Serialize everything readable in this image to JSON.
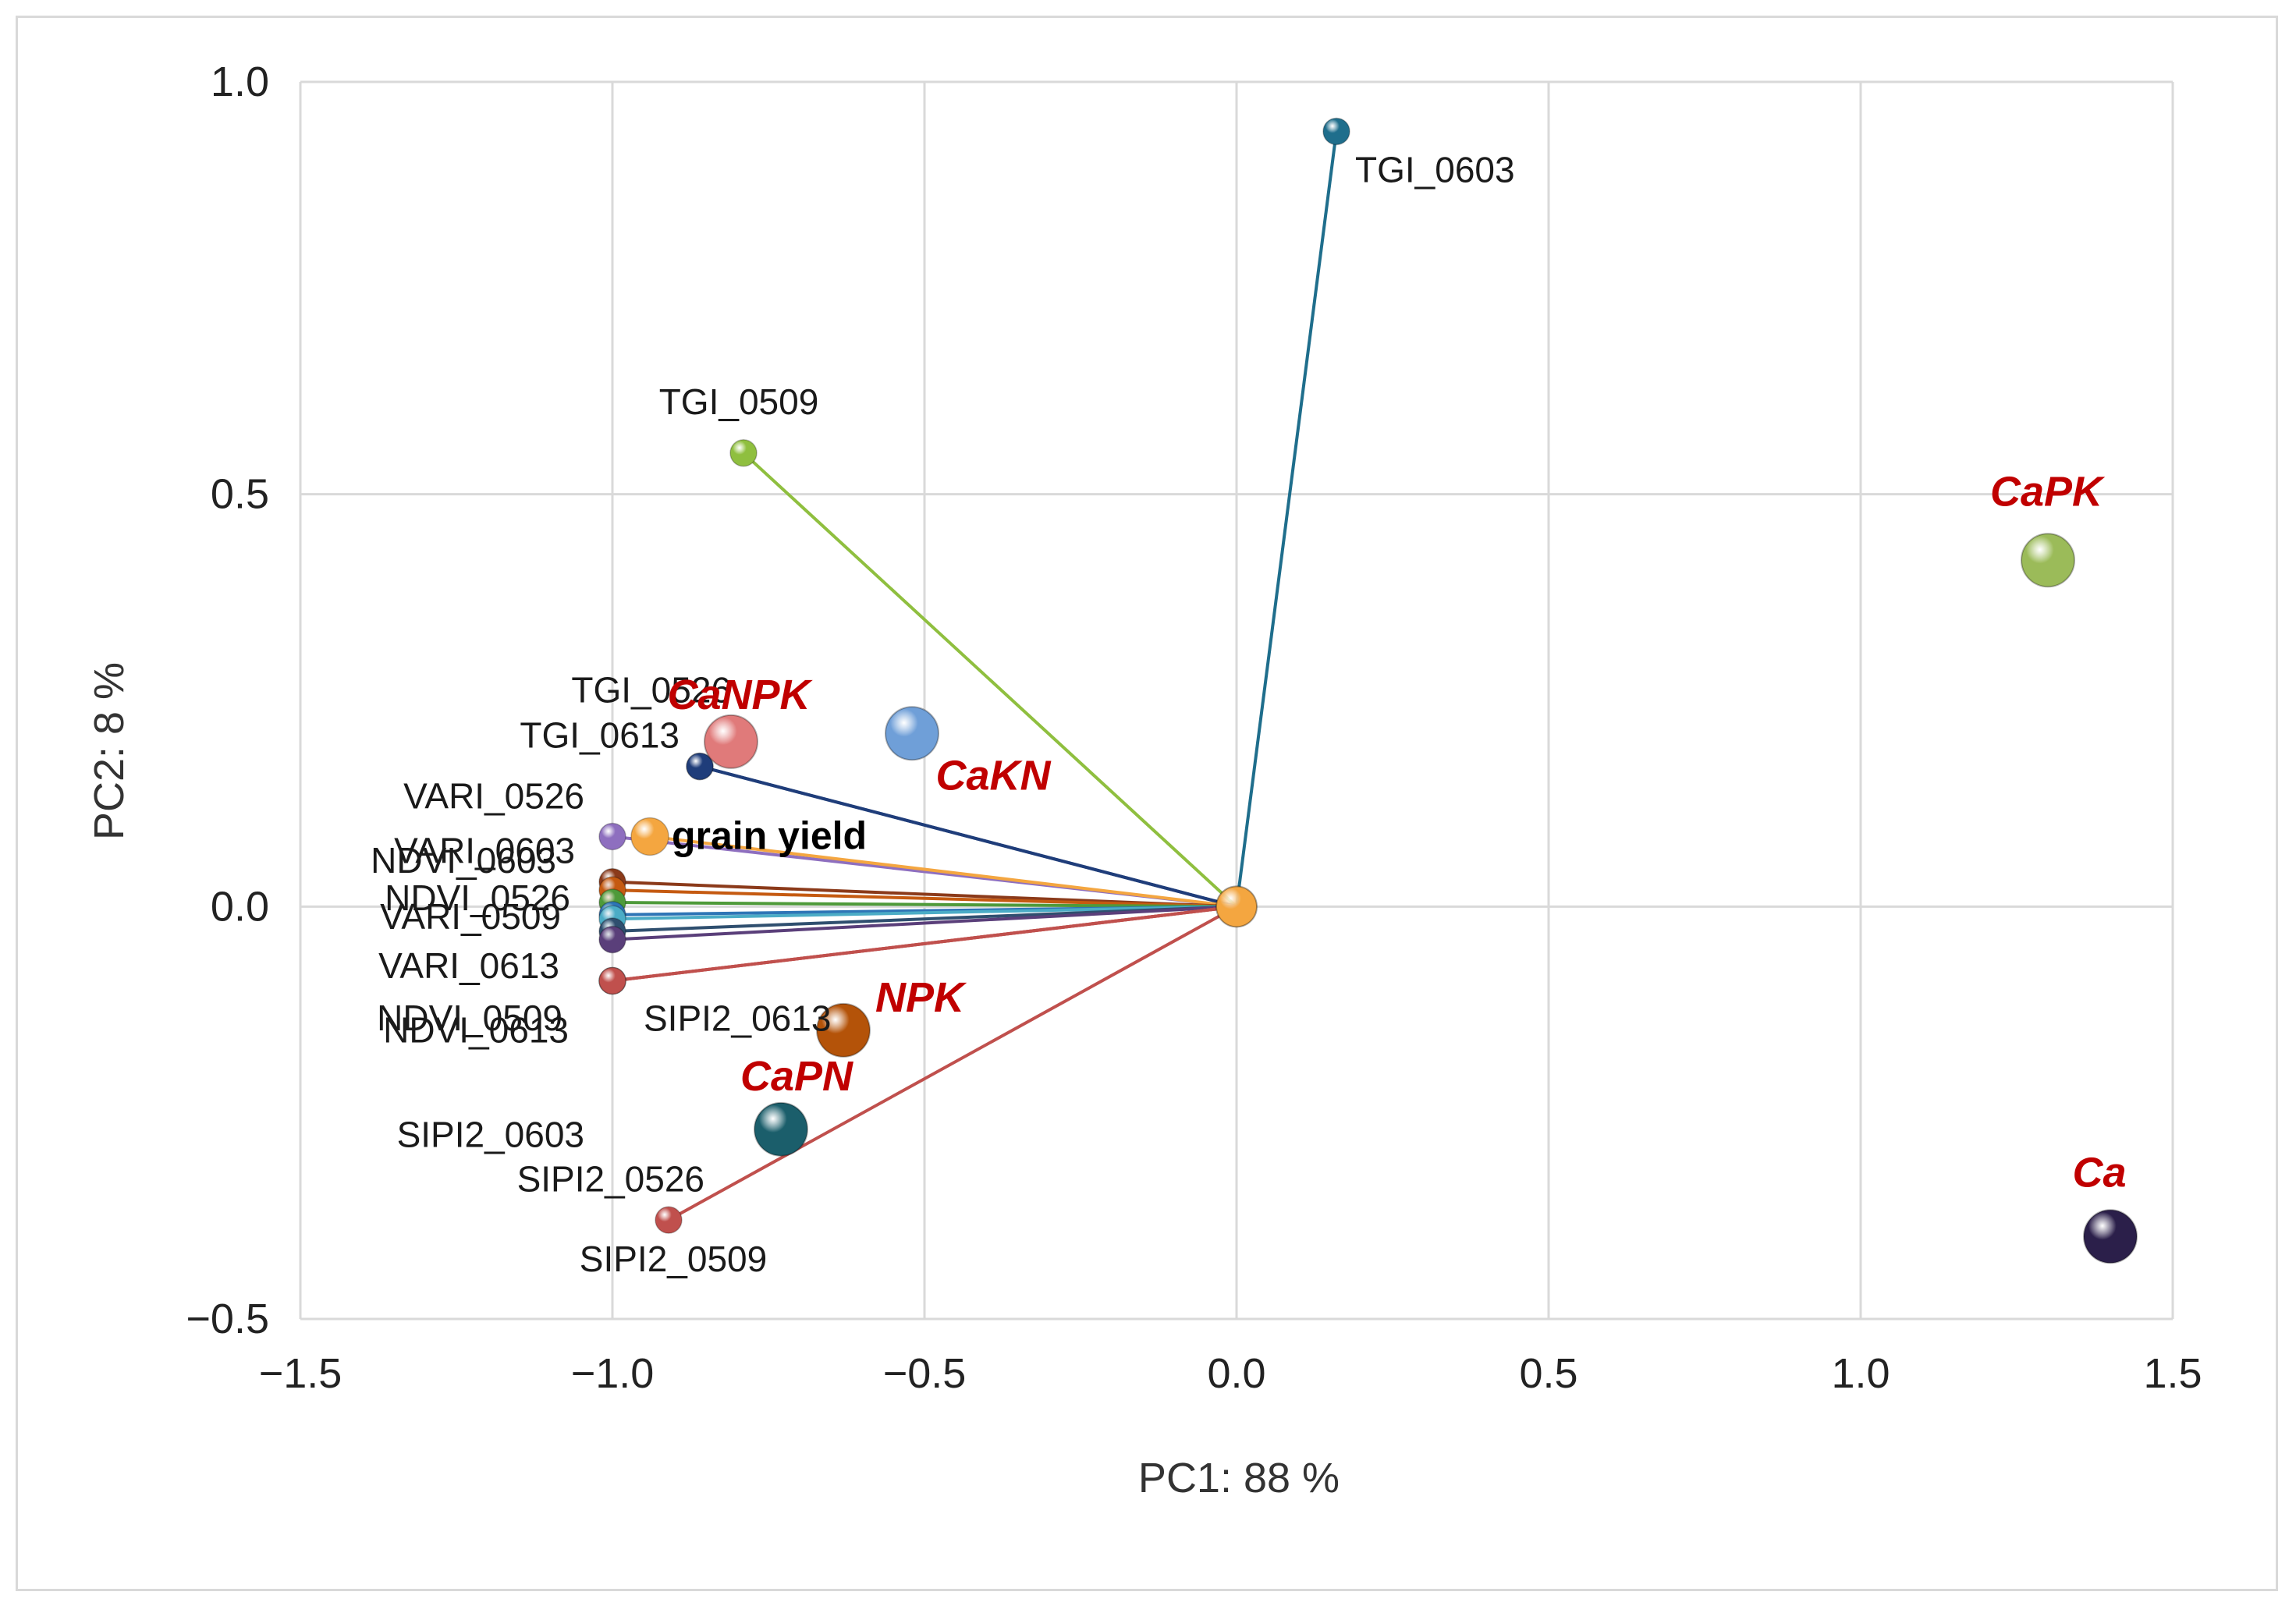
{
  "chart_data": {
    "type": "scatter",
    "subtype": "pca-biplot",
    "xlabel": "PC1: 88 %",
    "ylabel": "PC2: 8 %",
    "xlim": [
      -1.5,
      1.5
    ],
    "ylim": [
      -0.5,
      1.0
    ],
    "xticks": [
      -1.5,
      -1.0,
      -0.5,
      0.0,
      0.5,
      1.0,
      1.5
    ],
    "yticks": [
      -0.5,
      0.0,
      0.5,
      1.0
    ],
    "xtick_labels": [
      "−1.5",
      "−1.0",
      "−0.5",
      "0.0",
      "0.5",
      "1.0",
      "1.5"
    ],
    "ytick_labels": [
      "−0.5",
      "0.0",
      "0.5",
      "1.0"
    ],
    "grid": true,
    "origin": [
      0.0,
      0.0
    ],
    "origin_color": "#f4a640",
    "variables": [
      {
        "name": "TGI_0603",
        "x": 0.16,
        "y": 0.94,
        "color": "#1f6e8c",
        "label": "TGI_0603"
      },
      {
        "name": "TGI_0509",
        "x": -0.79,
        "y": 0.55,
        "color": "#8fbf3f",
        "label": "TGI_0509"
      },
      {
        "name": "TGI_0526",
        "x": -0.86,
        "y": 0.17,
        "color": "#1f3d7a",
        "label": "TGI_0526"
      },
      {
        "name": "TGI_0613",
        "x": -0.86,
        "y": 0.17,
        "color": "#1f3d7a",
        "label": "TGI_0613"
      },
      {
        "name": "VARI_0526",
        "x": -1.0,
        "y": 0.085,
        "color": "#8e6fbf",
        "label": "VARI_0526"
      },
      {
        "name": "grain yield",
        "x": -0.94,
        "y": 0.085,
        "color": "#f4a640",
        "label": "grain yield"
      },
      {
        "name": "VARI_0603",
        "x": -1.0,
        "y": 0.03,
        "color": "#8b3a1a",
        "label": "VARI_0603"
      },
      {
        "name": "NDVI_0526",
        "x": -1.0,
        "y": 0.02,
        "color": "#c55a11",
        "label": "NDVI_0526"
      },
      {
        "name": "NDVI_0603",
        "x": -1.0,
        "y": 0.005,
        "color": "#4e9a3a",
        "label": "NDVI_0603"
      },
      {
        "name": "VARI_0509",
        "x": -1.0,
        "y": -0.01,
        "color": "#2e75b6",
        "label": "VARI_0509"
      },
      {
        "name": "VARI_0613",
        "x": -1.0,
        "y": -0.015,
        "color": "#4bacc6",
        "label": "VARI_0613"
      },
      {
        "name": "NDVI_0509",
        "x": -1.0,
        "y": -0.03,
        "color": "#2f4f6f",
        "label": "NDVI_0509"
      },
      {
        "name": "NDVI_0613",
        "x": -1.0,
        "y": -0.04,
        "color": "#5a3f7a",
        "label": "NDVI_0613"
      },
      {
        "name": "SIPI2_0613",
        "x": -1.0,
        "y": -0.09,
        "color": "#d0706a",
        "label": "SIPI2_0613"
      },
      {
        "name": "SIPI2_0603",
        "x": -1.0,
        "y": -0.09,
        "color": "#c0504d",
        "label": "SIPI2_0603"
      },
      {
        "name": "SIPI2_0526",
        "x": -1.0,
        "y": -0.09,
        "color": "#c0504d",
        "label": "SIPI2_0526"
      },
      {
        "name": "SIPI2_0509",
        "x": -0.91,
        "y": -0.38,
        "color": "#c0504d",
        "label": "SIPI2_0509"
      }
    ],
    "treatments": [
      {
        "name": "CaPK",
        "x": 1.3,
        "y": 0.42,
        "color": "#9bbb59",
        "label": "CaPK"
      },
      {
        "name": "Ca",
        "x": 1.4,
        "y": -0.4,
        "color": "#2b1f4a",
        "label": "Ca"
      },
      {
        "name": "CaNPK",
        "x": -0.81,
        "y": 0.2,
        "color": "#e07a7a",
        "label": "CaNPK"
      },
      {
        "name": "CaKN",
        "x": -0.52,
        "y": 0.21,
        "color": "#6f9fd8",
        "label": "CaKN"
      },
      {
        "name": "NPK",
        "x": -0.63,
        "y": -0.15,
        "color": "#b45309",
        "label": "NPK"
      },
      {
        "name": "CaPN",
        "x": -0.73,
        "y": -0.27,
        "color": "#1b5e6b",
        "label": "CaPN"
      }
    ]
  }
}
